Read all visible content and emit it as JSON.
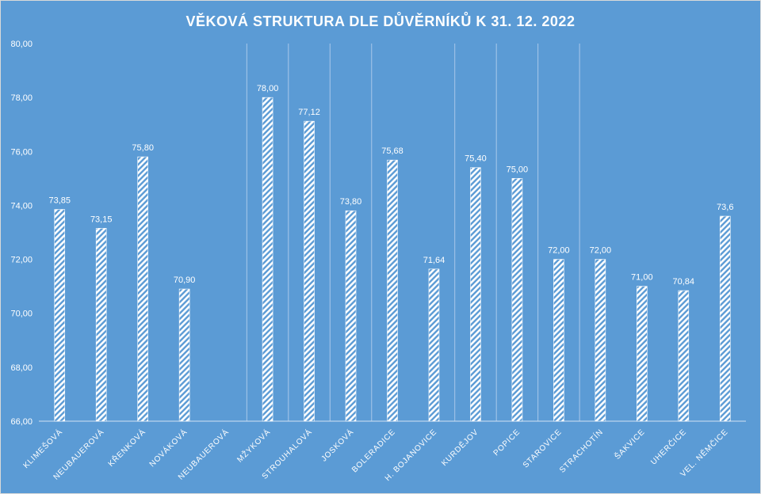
{
  "chart_data": {
    "type": "bar",
    "title": "VĚKOVÁ STRUKTURA  DLE DŮVĚRNÍKŮ K 31. 12. 2022",
    "xlabel": "",
    "ylabel": "",
    "ylim": [
      66,
      80
    ],
    "y_ticks": [
      "66,00",
      "68,00",
      "70,00",
      "72,00",
      "74,00",
      "76,00",
      "78,00",
      "80,00"
    ],
    "categories": [
      "KLIMEŠOVÁ",
      "NEUBAUEROVÁ",
      "KŘENKOVÁ",
      "NOVÁKOVÁ",
      "NEUBAUEROVÁ",
      "MŽYKOVÁ",
      "STROUHALOVÁ",
      "JOSKOVÁ",
      "BOLERADICE",
      "H. BOJANOVICE",
      "KURDĚJOV",
      "POPICE",
      "STAROVICE",
      "STRACHOTÍN",
      "ŠAKVICE",
      "UHERČICE",
      "VEL. NĚMČICE"
    ],
    "values": [
      73.85,
      73.15,
      75.8,
      70.9,
      null,
      78.0,
      77.12,
      73.8,
      75.68,
      71.64,
      75.4,
      75.0,
      72.0,
      72.0,
      71.0,
      70.84,
      73.6
    ],
    "data_labels": [
      "73,85",
      "73,15",
      "75,80",
      "70,90",
      "",
      "78,00",
      "77,12",
      "73,80",
      "75,68",
      "71,64",
      "75,40",
      "75,00",
      "72,00",
      "72,00",
      "71,00",
      "70,84",
      "73,6"
    ],
    "bar_fill": "diagonal white hatch",
    "background_color": "#5b9bd5",
    "grid": false,
    "legend": "none"
  }
}
